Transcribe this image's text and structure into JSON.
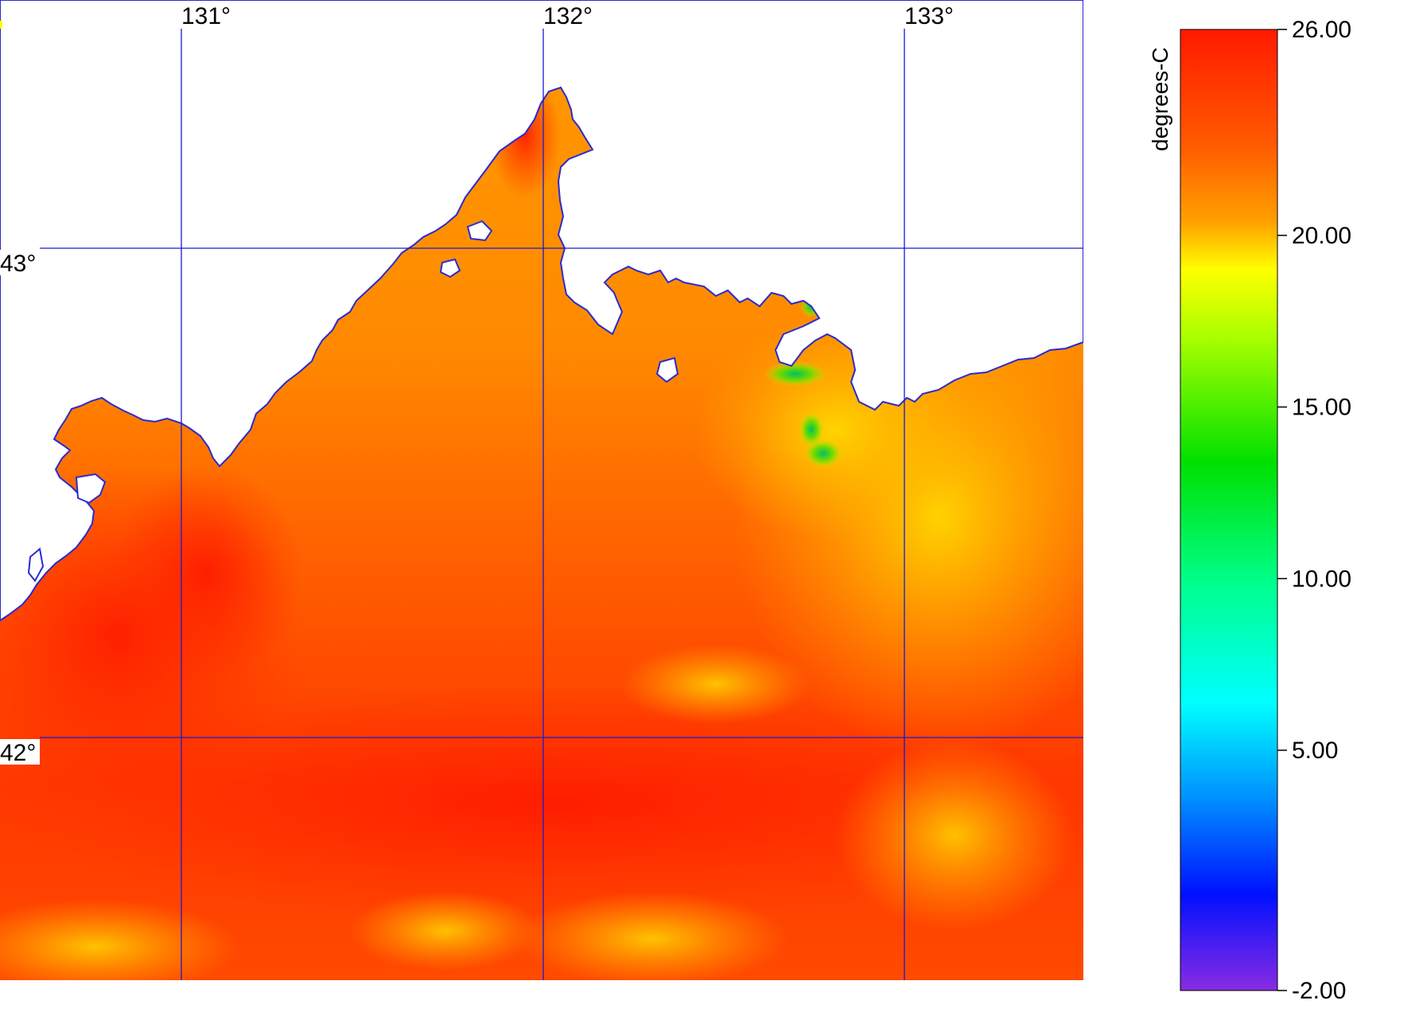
{
  "map": {
    "longitude_labels": [
      "131°",
      "132°",
      "133°"
    ],
    "latitude_labels": [
      "43°",
      "42°"
    ],
    "gridline_color": "#1a1acc",
    "coastline_color": "#2a2ad0",
    "land_color": "#ffffff"
  },
  "colorbar": {
    "unit": "degrees-C",
    "min": -2.0,
    "max": 26.0,
    "tick_labels": [
      "26.00",
      "20.00",
      "15.00",
      "10.00",
      "5.00",
      "-2.00"
    ],
    "tick_values": [
      26,
      20,
      15,
      10,
      5,
      -2
    ],
    "colors": {
      "top": "#ff1a00",
      "orange": "#ff8c00",
      "yellow": "#ffff00",
      "green": "#00e000",
      "cyan": "#00ffff",
      "blue": "#0010ff",
      "violet": "#8a2be2"
    }
  },
  "sst_colors": {
    "warm_red": "#ff2a00",
    "red_orange": "#ff5200",
    "orange": "#ff8200",
    "amber": "#ffb000",
    "yellow": "#f8e400",
    "cool_green": "#6ed800"
  }
}
